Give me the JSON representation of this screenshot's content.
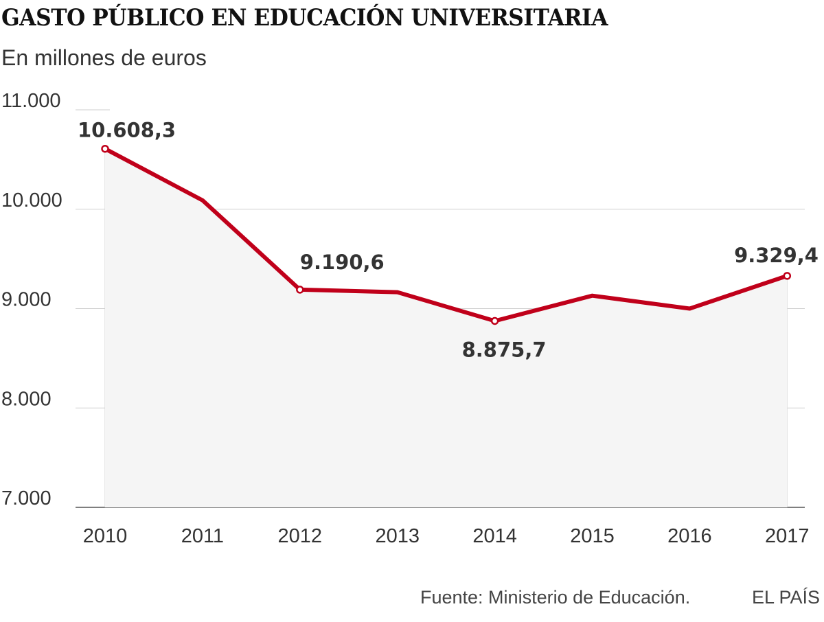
{
  "chart_data": {
    "type": "line",
    "title": "GASTO PÚBLICO EN EDUCACIÓN UNIVERSITARIA",
    "subtitle": "En millones de euros",
    "categories": [
      "2010",
      "2011",
      "2012",
      "2013",
      "2014",
      "2015",
      "2016",
      "2017"
    ],
    "values": [
      10608.3,
      10090,
      9190.6,
      9165,
      8875.7,
      9130,
      9000,
      9329.4
    ],
    "ylim": [
      7000,
      11000
    ],
    "yticks": [
      11000,
      10000,
      9000,
      8000,
      7000
    ],
    "ytick_labels": [
      "11.000",
      "10.000",
      "9.000",
      "8.000",
      "7.000"
    ],
    "data_labels": [
      {
        "index": 0,
        "text": "10.608,3"
      },
      {
        "index": 2,
        "text": "9.190,6"
      },
      {
        "index": 4,
        "text": "8.875,7"
      },
      {
        "index": 7,
        "text": "9.329,4"
      }
    ],
    "line_color": "#c0001a",
    "area_color": "#f5f5f5",
    "grid": true
  },
  "footer": {
    "source": "Fuente: Ministerio de Educación.",
    "brand": "EL PAÍS"
  }
}
